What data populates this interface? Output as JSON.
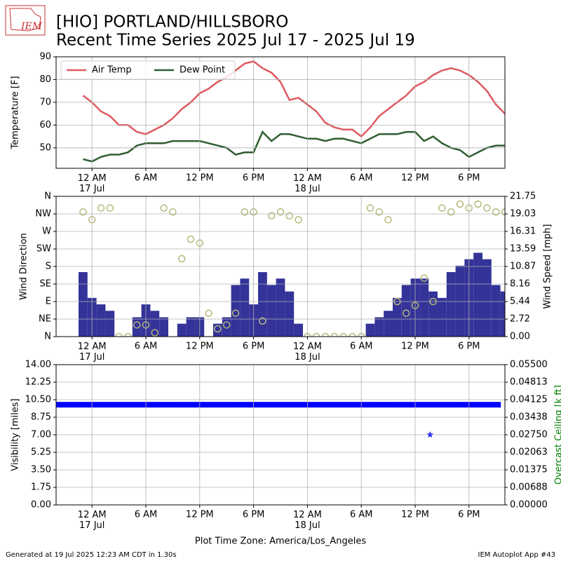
{
  "logo": "IEM",
  "title": "[HIO] PORTLAND/HILLSBORO",
  "subtitle": "Recent Time Series 2025 Jul 17 - 2025 Jul 19",
  "x_label": "Plot Time Zone: America/Los_Angeles",
  "footer_left": "Generated at 19 Jul 2025 12:23 AM CDT in 1.30s",
  "footer_right": "IEM Autoplot App #43",
  "chart_data": [
    {
      "type": "line",
      "ylabel": "Temperature [F]",
      "ylim": [
        41,
        90
      ],
      "yticks": [
        50,
        60,
        70,
        80,
        90
      ],
      "grid": true,
      "legend": "upper left",
      "xlim": [
        "2025-07-16 20:00",
        "2025-07-18 22:00"
      ],
      "xticks": [
        {
          "value": "2025-07-17 00:00",
          "label": "12 AM\n17 Jul"
        },
        {
          "value": "2025-07-17 06:00",
          "label": "6 AM"
        },
        {
          "value": "2025-07-17 12:00",
          "label": "12 PM"
        },
        {
          "value": "2025-07-17 18:00",
          "label": "6 PM"
        },
        {
          "value": "2025-07-18 00:00",
          "label": "12 AM\n18 Jul"
        },
        {
          "value": "2025-07-18 06:00",
          "label": "6 AM"
        },
        {
          "value": "2025-07-18 12:00",
          "label": "12 PM"
        },
        {
          "value": "2025-07-18 18:00",
          "label": "6 PM"
        }
      ],
      "x": [
        "2025-07-16 23:00",
        "2025-07-17 00:00",
        "2025-07-17 01:00",
        "2025-07-17 02:00",
        "2025-07-17 03:00",
        "2025-07-17 04:00",
        "2025-07-17 05:00",
        "2025-07-17 06:00",
        "2025-07-17 07:00",
        "2025-07-17 08:00",
        "2025-07-17 09:00",
        "2025-07-17 10:00",
        "2025-07-17 11:00",
        "2025-07-17 12:00",
        "2025-07-17 13:00",
        "2025-07-17 14:00",
        "2025-07-17 15:00",
        "2025-07-17 16:00",
        "2025-07-17 17:00",
        "2025-07-17 18:00",
        "2025-07-17 19:00",
        "2025-07-17 20:00",
        "2025-07-17 21:00",
        "2025-07-17 22:00",
        "2025-07-17 23:00",
        "2025-07-18 00:00",
        "2025-07-18 01:00",
        "2025-07-18 02:00",
        "2025-07-18 03:00",
        "2025-07-18 04:00",
        "2025-07-18 05:00",
        "2025-07-18 06:00",
        "2025-07-18 07:00",
        "2025-07-18 08:00",
        "2025-07-18 09:00",
        "2025-07-18 10:00",
        "2025-07-18 11:00",
        "2025-07-18 12:00",
        "2025-07-18 13:00",
        "2025-07-18 14:00",
        "2025-07-18 15:00",
        "2025-07-18 16:00",
        "2025-07-18 17:00",
        "2025-07-18 18:00",
        "2025-07-18 19:00",
        "2025-07-18 20:00",
        "2025-07-18 21:00",
        "2025-07-18 22:00"
      ],
      "series": [
        {
          "name": "Air Temp",
          "type": "line",
          "color": "#de5a5f",
          "values": [
            73,
            70,
            66,
            64,
            60,
            60,
            57,
            56,
            58,
            60,
            63,
            67,
            70,
            74,
            76,
            79,
            81,
            84,
            87,
            88,
            85,
            83,
            79,
            71,
            72,
            69,
            66,
            61,
            59,
            58,
            58,
            55,
            59,
            64,
            67,
            70,
            73,
            77,
            79,
            82,
            84,
            85,
            84,
            82,
            79,
            75,
            69,
            65
          ]
        },
        {
          "name": "Dew Point",
          "type": "line",
          "color": "#2e5e32",
          "values": [
            45,
            44,
            46,
            47,
            47,
            48,
            51,
            52,
            52,
            52,
            53,
            53,
            53,
            53,
            52,
            51,
            50,
            47,
            48,
            48,
            57,
            53,
            56,
            56,
            55,
            54,
            54,
            53,
            54,
            54,
            53,
            52,
            54,
            56,
            56,
            56,
            57,
            57,
            53,
            55,
            52,
            50,
            49,
            46,
            48,
            50,
            51,
            51
          ]
        }
      ]
    },
    {
      "type": "combo",
      "ylabel": "Wind Direction",
      "y2label": "Wind Speed [mph]",
      "ylim": [
        0,
        360
      ],
      "yticks": [
        {
          "value": 0,
          "label": "N"
        },
        {
          "value": 45,
          "label": "NE"
        },
        {
          "value": 90,
          "label": "E"
        },
        {
          "value": 135,
          "label": "SE"
        },
        {
          "value": 180,
          "label": "S"
        },
        {
          "value": 225,
          "label": "SW"
        },
        {
          "value": 270,
          "label": "W"
        },
        {
          "value": 315,
          "label": "NW"
        },
        {
          "value": 360,
          "label": "N"
        }
      ],
      "y2lim": [
        0,
        21.75
      ],
      "y2ticks": [
        {
          "value": 0,
          "label": "0.00"
        },
        {
          "value": 2.71875,
          "label": "2.72"
        },
        {
          "value": 5.4375,
          "label": "5.44"
        },
        {
          "value": 8.15625,
          "label": "8.16"
        },
        {
          "value": 10.875,
          "label": "10.87"
        },
        {
          "value": 13.59375,
          "label": "13.59"
        },
        {
          "value": 16.3125,
          "label": "16.31"
        },
        {
          "value": 19.03125,
          "label": "19.03"
        },
        {
          "value": 21.75,
          "label": "21.75"
        }
      ],
      "grid": true,
      "xlim": [
        "2025-07-16 20:00",
        "2025-07-18 22:00"
      ],
      "xticks": [
        {
          "value": "2025-07-17 00:00",
          "label": "12 AM\n17 Jul"
        },
        {
          "value": "2025-07-17 06:00",
          "label": "6 AM"
        },
        {
          "value": "2025-07-17 12:00",
          "label": "12 PM"
        },
        {
          "value": "2025-07-17 18:00",
          "label": "6 PM"
        },
        {
          "value": "2025-07-18 00:00",
          "label": "12 AM\n18 Jul"
        },
        {
          "value": "2025-07-18 06:00",
          "label": "6 AM"
        },
        {
          "value": "2025-07-18 12:00",
          "label": "12 PM"
        },
        {
          "value": "2025-07-18 18:00",
          "label": "6 PM"
        }
      ],
      "x": [
        "2025-07-16 23:00",
        "2025-07-17 00:00",
        "2025-07-17 01:00",
        "2025-07-17 02:00",
        "2025-07-17 03:00",
        "2025-07-17 04:00",
        "2025-07-17 05:00",
        "2025-07-17 06:00",
        "2025-07-17 07:00",
        "2025-07-17 08:00",
        "2025-07-17 09:00",
        "2025-07-17 10:00",
        "2025-07-17 11:00",
        "2025-07-17 12:00",
        "2025-07-17 13:00",
        "2025-07-17 14:00",
        "2025-07-17 15:00",
        "2025-07-17 16:00",
        "2025-07-17 17:00",
        "2025-07-17 18:00",
        "2025-07-17 19:00",
        "2025-07-17 20:00",
        "2025-07-17 21:00",
        "2025-07-17 22:00",
        "2025-07-17 23:00",
        "2025-07-18 00:00",
        "2025-07-18 01:00",
        "2025-07-18 02:00",
        "2025-07-18 03:00",
        "2025-07-18 04:00",
        "2025-07-18 05:00",
        "2025-07-18 06:00",
        "2025-07-18 07:00",
        "2025-07-18 08:00",
        "2025-07-18 09:00",
        "2025-07-18 10:00",
        "2025-07-18 11:00",
        "2025-07-18 12:00",
        "2025-07-18 13:00",
        "2025-07-18 14:00",
        "2025-07-18 15:00",
        "2025-07-18 16:00",
        "2025-07-18 17:00",
        "2025-07-18 18:00",
        "2025-07-18 19:00",
        "2025-07-18 20:00",
        "2025-07-18 21:00",
        "2025-07-18 22:00"
      ],
      "series": [
        {
          "type": "bar",
          "axis": "y2",
          "color": "#333399",
          "values": [
            10,
            6,
            5,
            4,
            0,
            0,
            3,
            5,
            4,
            3,
            0,
            2,
            3,
            3,
            0,
            2,
            3,
            8,
            9,
            5,
            10,
            8,
            9,
            7,
            2,
            0,
            0,
            0,
            0,
            0,
            0,
            0,
            2,
            3,
            4,
            6,
            8,
            9,
            9,
            7,
            6,
            10,
            11,
            12,
            13,
            12,
            8,
            7
          ]
        },
        {
          "type": "scatter",
          "color": "#b5b87a",
          "values": [
            320,
            300,
            330,
            330,
            0,
            0,
            30,
            30,
            10,
            330,
            320,
            200,
            250,
            240,
            60,
            20,
            30,
            60,
            320,
            320,
            40,
            310,
            320,
            310,
            300,
            0,
            0,
            0,
            0,
            0,
            0,
            0,
            330,
            320,
            300,
            90,
            60,
            80,
            150,
            90,
            330,
            320,
            340,
            330,
            340,
            330,
            320,
            320
          ]
        }
      ]
    },
    {
      "type": "scatter",
      "ylabel": "Visibility [miles]",
      "y2label": "Overcast Ceiling [k ft]",
      "ylim": [
        0,
        14
      ],
      "yticks": [
        {
          "value": 0,
          "label": "0.00"
        },
        {
          "value": 1.75,
          "label": "1.75"
        },
        {
          "value": 3.5,
          "label": "3.50"
        },
        {
          "value": 5.25,
          "label": "5.25"
        },
        {
          "value": 7,
          "label": "7.00"
        },
        {
          "value": 8.75,
          "label": "8.75"
        },
        {
          "value": 10.5,
          "label": "10.50"
        },
        {
          "value": 12.25,
          "label": "12.25"
        },
        {
          "value": 14,
          "label": "14.00"
        }
      ],
      "y2lim": [
        0,
        0.055
      ],
      "y2ticks": [
        {
          "value": 0,
          "label": "0.00000"
        },
        {
          "value": 0.006875,
          "label": "0.00688"
        },
        {
          "value": 0.01375,
          "label": "0.01375"
        },
        {
          "value": 0.020625,
          "label": "0.02063"
        },
        {
          "value": 0.0275,
          "label": "0.02750"
        },
        {
          "value": 0.034375,
          "label": "0.03438"
        },
        {
          "value": 0.04125,
          "label": "0.04125"
        },
        {
          "value": 0.048125,
          "label": "0.04813"
        },
        {
          "value": 0.055,
          "label": "0.05500"
        }
      ],
      "grid": true,
      "xlim": [
        "2025-07-16 20:00",
        "2025-07-18 22:00"
      ],
      "xticks": [
        {
          "value": "2025-07-17 00:00",
          "label": "12 AM\n17 Jul"
        },
        {
          "value": "2025-07-17 06:00",
          "label": "6 AM"
        },
        {
          "value": "2025-07-17 12:00",
          "label": "12 PM"
        },
        {
          "value": "2025-07-17 18:00",
          "label": "6 PM"
        },
        {
          "value": "2025-07-18 00:00",
          "label": "12 AM\n18 Jul"
        },
        {
          "value": "2025-07-18 06:00",
          "label": "6 AM"
        },
        {
          "value": "2025-07-18 12:00",
          "label": "12 PM"
        },
        {
          "value": "2025-07-18 18:00",
          "label": "6 PM"
        }
      ],
      "x": [
        "2025-07-16 20:00",
        "2025-07-16 21:00",
        "2025-07-16 22:00",
        "2025-07-16 23:00",
        "2025-07-17 00:00",
        "2025-07-17 01:00",
        "2025-07-17 02:00",
        "2025-07-17 03:00",
        "2025-07-17 04:00",
        "2025-07-17 05:00",
        "2025-07-17 06:00",
        "2025-07-17 07:00",
        "2025-07-17 08:00",
        "2025-07-17 09:00",
        "2025-07-17 10:00",
        "2025-07-17 11:00",
        "2025-07-17 12:00",
        "2025-07-17 13:00",
        "2025-07-17 14:00",
        "2025-07-17 15:00",
        "2025-07-17 16:00",
        "2025-07-17 17:00",
        "2025-07-17 18:00",
        "2025-07-17 19:00",
        "2025-07-17 20:00",
        "2025-07-17 21:00",
        "2025-07-17 22:00",
        "2025-07-17 23:00",
        "2025-07-18 00:00",
        "2025-07-18 01:00",
        "2025-07-18 02:00",
        "2025-07-18 03:00",
        "2025-07-18 04:00",
        "2025-07-18 05:00",
        "2025-07-18 06:00",
        "2025-07-18 07:00",
        "2025-07-18 08:00",
        "2025-07-18 09:00",
        "2025-07-18 10:00",
        "2025-07-18 11:00",
        "2025-07-18 12:00",
        "2025-07-18 13:00",
        "2025-07-18 14:00",
        "2025-07-18 15:00",
        "2025-07-18 16:00",
        "2025-07-18 17:00",
        "2025-07-18 18:00",
        "2025-07-18 19:00",
        "2025-07-18 20:00",
        "2025-07-18 21:00"
      ],
      "series": [
        {
          "type": "scatter",
          "marker": "band",
          "color": "#0000ff",
          "values": [
            10,
            10,
            10,
            10,
            10,
            10,
            10,
            10,
            10,
            10,
            10,
            10,
            10,
            10,
            10,
            10,
            10,
            10,
            10,
            10,
            10,
            10,
            10,
            10,
            10,
            10,
            10,
            10,
            10,
            10,
            10,
            10,
            10,
            10,
            10,
            10,
            10,
            10,
            10,
            10,
            10,
            10,
            10,
            10,
            10,
            10,
            10,
            10,
            10,
            10
          ]
        },
        {
          "type": "scatter",
          "marker": "star",
          "axis": "y2",
          "color": "#0000ff",
          "x": [
            "2025-07-18 13:40"
          ],
          "values": [
            0.0275
          ]
        }
      ]
    }
  ]
}
